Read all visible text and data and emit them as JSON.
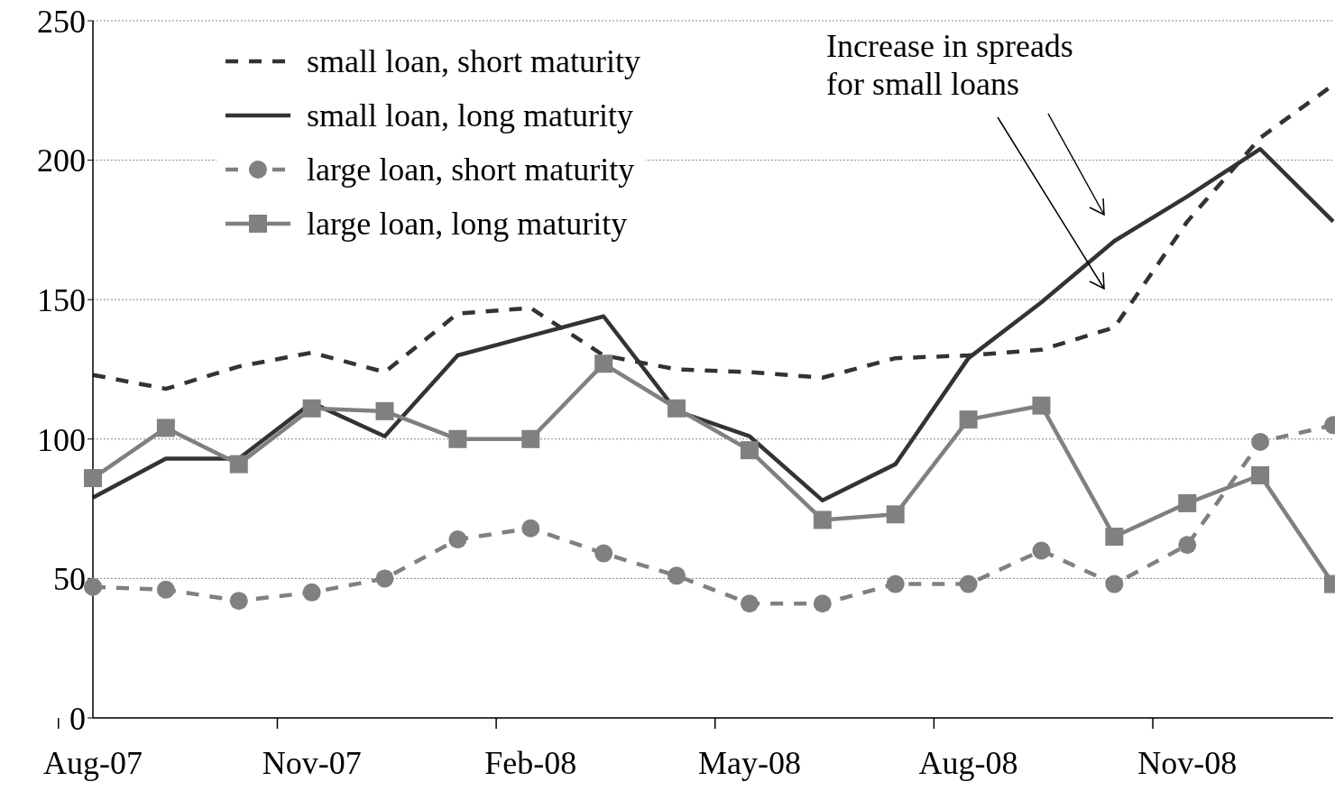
{
  "chart_data": {
    "type": "line",
    "categories": [
      "Aug-07",
      null,
      null,
      "Nov-07",
      null,
      null,
      "Feb-08",
      null,
      null,
      "May-08",
      null,
      null,
      "Aug-08",
      null,
      null,
      "Nov-08",
      null,
      null
    ],
    "series": [
      {
        "name": "small loan, short maturity",
        "color": "#333333",
        "line_style": "dashed",
        "marker": "none",
        "values": [
          123,
          118,
          126,
          131,
          124,
          145,
          147,
          130,
          125,
          124,
          122,
          129,
          130,
          132,
          140,
          178,
          208,
          227
        ]
      },
      {
        "name": "small loan, long maturity",
        "color": "#333333",
        "line_style": "solid",
        "marker": "none",
        "values": [
          79,
          93,
          93,
          113,
          101,
          130,
          137,
          144,
          110,
          101,
          78,
          91,
          129,
          149,
          171,
          187,
          204,
          178
        ]
      },
      {
        "name": "large loan, short maturity",
        "color": "#808080",
        "line_style": "dashed",
        "marker": "circle",
        "values": [
          47,
          46,
          42,
          45,
          50,
          64,
          68,
          59,
          51,
          41,
          41,
          48,
          48,
          60,
          48,
          62,
          99,
          105
        ]
      },
      {
        "name": "large loan, long maturity",
        "color": "#808080",
        "line_style": "solid",
        "marker": "square",
        "values": [
          86,
          104,
          91,
          111,
          110,
          100,
          100,
          127,
          111,
          96,
          71,
          73,
          107,
          112,
          65,
          77,
          87,
          48
        ]
      }
    ],
    "ylim": [
      0,
      250
    ],
    "yticks": [
      0,
      50,
      100,
      150,
      200,
      250
    ],
    "grid": "y",
    "legend": "top left",
    "annotations": [
      "Increase in spreads\nfor small loans"
    ]
  }
}
